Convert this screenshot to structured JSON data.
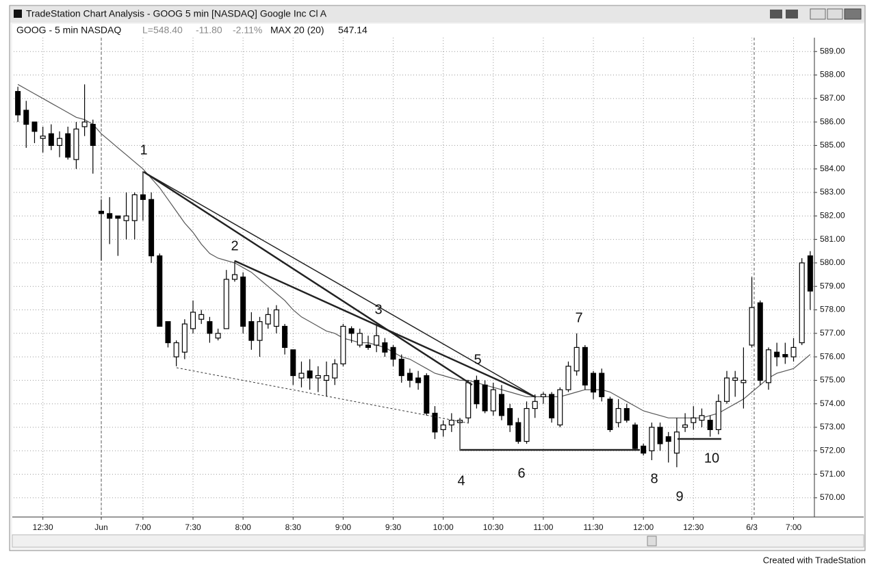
{
  "window_title": "TradeStation Chart Analysis - GOOG 5 min [NASDAQ] Google Inc Cl A",
  "status": {
    "symbol": "GOOG - 5 min NASDAQ",
    "last": "L=548.40",
    "change": "-11.80",
    "change_pct": "-2.11%",
    "indicator_value": "547.14"
  },
  "footer": "Created with TradeStation",
  "chart_data": {
    "type": "candlestick",
    "categories": [
      null,
      null,
      null,
      "12:30",
      null,
      null,
      null,
      null,
      null,
      null,
      "Jun",
      null,
      null,
      null,
      null,
      "7:00",
      null,
      null,
      null,
      null,
      null,
      "7:30",
      null,
      null,
      null,
      null,
      null,
      "8:00",
      null,
      null,
      null,
      null,
      null,
      "8:30",
      null,
      null,
      null,
      null,
      null,
      "9:00",
      null,
      null,
      null,
      null,
      null,
      "9:30",
      null,
      null,
      null,
      null,
      null,
      "10:00",
      null,
      null,
      null,
      null,
      null,
      "10:30",
      null,
      null,
      null,
      null,
      null,
      "11:00",
      null,
      null,
      null,
      null,
      null,
      "11:30",
      null,
      null,
      null,
      null,
      null,
      "12:00",
      null,
      null,
      null,
      null,
      null,
      "12:30",
      null,
      null,
      null,
      null,
      null,
      null,
      "6/3",
      null,
      null,
      null,
      null,
      "7:00",
      null,
      null
    ],
    "open": [
      587.3,
      586.5,
      586.0,
      585.3,
      585.5,
      585.0,
      585.5,
      584.4,
      585.8,
      585.9,
      582.2,
      582.1,
      582.0,
      581.8,
      581.8,
      582.9,
      582.7,
      580.3,
      577.5,
      576.0,
      576.2,
      577.2,
      577.6,
      577.5,
      576.8,
      577.2,
      579.3,
      579.4,
      577.5,
      576.7,
      577.4,
      577.3,
      577.3,
      576.3,
      575.1,
      575.4,
      575.1,
      575.0,
      575.1,
      575.7,
      577.2,
      576.5,
      576.5,
      576.5,
      576.6,
      576.4,
      575.9,
      575.3,
      575.1,
      575.2,
      573.6,
      572.9,
      573.1,
      573.2,
      573.4,
      575.0,
      574.8,
      573.7,
      574.4,
      573.8,
      573.2,
      572.4,
      573.8,
      574.3,
      574.4,
      573.1,
      574.6,
      575.4,
      576.4,
      575.3,
      575.3,
      574.2,
      573.2,
      573.8,
      573.1,
      572.2,
      572.0,
      573.0,
      572.6,
      571.9,
      573.0,
      573.2,
      573.3,
      573.3,
      572.9,
      574.1,
      575.0,
      574.9,
      576.5,
      578.3,
      574.9,
      576.2,
      576.1,
      576.0,
      576.6,
      580.3
    ],
    "high": [
      587.5,
      586.9,
      586.0,
      585.8,
      585.9,
      585.6,
      585.8,
      586.0,
      587.6,
      586.1,
      582.7,
      582.8,
      582.0,
      583.0,
      583.0,
      583.9,
      583.0,
      580.4,
      577.5,
      576.7,
      577.6,
      578.4,
      578.0,
      577.7,
      577.2,
      579.7,
      580.1,
      579.6,
      577.9,
      577.7,
      578.1,
      578.2,
      577.4,
      576.3,
      575.8,
      575.9,
      575.6,
      575.8,
      575.9,
      577.4,
      577.3,
      577.2,
      576.9,
      577.4,
      576.8,
      576.5,
      576.1,
      575.5,
      575.4,
      575.3,
      573.9,
      573.3,
      573.6,
      573.4,
      575.0,
      575.2,
      575.0,
      574.9,
      574.8,
      574.0,
      573.4,
      574.1,
      574.4,
      574.5,
      574.5,
      574.7,
      575.8,
      577.0,
      576.5,
      575.4,
      575.5,
      574.3,
      574.2,
      574.0,
      573.2,
      572.3,
      573.2,
      573.2,
      572.8,
      573.4,
      573.6,
      573.9,
      573.8,
      573.5,
      574.4,
      575.4,
      575.4,
      576.4,
      579.4,
      578.4,
      576.4,
      576.6,
      576.6,
      576.8,
      580.2,
      580.5
    ],
    "low": [
      586.0,
      584.9,
      585.1,
      584.7,
      584.8,
      584.5,
      584.4,
      584.0,
      585.4,
      583.8,
      580.1,
      580.8,
      580.3,
      581.0,
      581.0,
      581.8,
      580.0,
      577.3,
      576.4,
      575.6,
      575.9,
      577.0,
      577.4,
      576.6,
      576.7,
      577.2,
      579.2,
      577.0,
      576.3,
      576.0,
      577.2,
      577.0,
      576.1,
      574.8,
      574.7,
      574.6,
      574.5,
      574.3,
      574.8,
      575.6,
      576.6,
      576.4,
      576.3,
      576.2,
      576.0,
      575.6,
      574.9,
      574.7,
      574.6,
      573.5,
      572.5,
      572.6,
      572.8,
      572.0,
      573.2,
      573.8,
      573.6,
      573.5,
      573.3,
      572.8,
      572.3,
      572.3,
      573.4,
      574.0,
      573.2,
      573.0,
      574.5,
      575.2,
      574.6,
      574.2,
      574.1,
      572.8,
      573.0,
      573.2,
      572.0,
      571.8,
      571.6,
      572.0,
      571.5,
      571.3,
      572.8,
      572.9,
      573.0,
      572.6,
      572.7,
      574.0,
      574.3,
      573.8,
      576.4,
      574.8,
      574.6,
      575.6,
      575.7,
      575.8,
      576.5,
      578.0
    ],
    "close": [
      586.3,
      585.9,
      585.6,
      585.4,
      585.0,
      585.3,
      584.5,
      585.7,
      586.0,
      585.0,
      582.1,
      581.9,
      581.9,
      582.0,
      582.9,
      582.7,
      580.3,
      577.3,
      576.6,
      576.6,
      577.4,
      577.9,
      577.8,
      577.0,
      577.0,
      579.3,
      579.5,
      577.3,
      576.7,
      577.5,
      577.8,
      578.0,
      576.4,
      575.2,
      575.3,
      575.1,
      575.2,
      575.2,
      575.7,
      577.3,
      577.0,
      577.0,
      576.4,
      576.9,
      576.2,
      575.9,
      575.2,
      575.0,
      574.9,
      573.6,
      572.8,
      573.1,
      573.3,
      573.3,
      574.9,
      574.0,
      573.7,
      574.6,
      573.5,
      573.1,
      572.4,
      573.8,
      574.1,
      574.4,
      573.4,
      574.6,
      575.6,
      576.4,
      574.8,
      574.5,
      574.3,
      572.9,
      573.8,
      573.3,
      572.1,
      571.9,
      573.0,
      572.3,
      572.4,
      572.8,
      573.1,
      573.4,
      573.5,
      572.9,
      574.1,
      575.1,
      575.1,
      575.0,
      578.1,
      575.0,
      576.3,
      576.0,
      576.0,
      576.4,
      580.0,
      578.8
    ],
    "ma": {
      "name": "MAX 20 (20)",
      "color": "#555555",
      "values": [
        587.6,
        587.4,
        587.2,
        587.0,
        586.8,
        586.6,
        586.4,
        586.2,
        586.1,
        585.9,
        585.5,
        585.2,
        584.9,
        584.6,
        584.3,
        584.0,
        583.6,
        583.2,
        582.7,
        582.2,
        581.7,
        581.3,
        580.8,
        580.4,
        580.2,
        580.1,
        580.0,
        579.8,
        579.6,
        579.3,
        579.0,
        578.7,
        578.4,
        578.0,
        577.7,
        577.5,
        577.3,
        577.1,
        577.0,
        576.8,
        576.7,
        576.6,
        576.6,
        576.5,
        576.4,
        576.2,
        576.0,
        575.9,
        575.7,
        575.5,
        575.3,
        575.2,
        575.1,
        575.0,
        575.0,
        574.9,
        574.8,
        574.7,
        574.6,
        574.5,
        574.4,
        574.3,
        574.3,
        574.3,
        574.3,
        574.3,
        574.4,
        574.5,
        574.6,
        574.6,
        574.6,
        574.5,
        574.3,
        574.1,
        573.9,
        573.7,
        573.6,
        573.5,
        573.4,
        573.4,
        573.4,
        573.4,
        573.4,
        573.5,
        573.6,
        573.8,
        574.0,
        574.2,
        574.5,
        574.8,
        575.1,
        575.3,
        575.4,
        575.5,
        575.8,
        576.1
      ]
    },
    "up_color": "#ffffff",
    "down_color": "#000000",
    "ylim": [
      569.18,
      589.59
    ],
    "yticks": [
      {
        "value": 570,
        "label": "570.00"
      },
      {
        "value": 571,
        "label": "571.00"
      },
      {
        "value": 572,
        "label": "572.00"
      },
      {
        "value": 573,
        "label": "573.00"
      },
      {
        "value": 574,
        "label": "574.00"
      },
      {
        "value": 575,
        "label": "575.00"
      },
      {
        "value": 576,
        "label": "576.00"
      },
      {
        "value": 577,
        "label": "577.00"
      },
      {
        "value": 578,
        "label": "578.00"
      },
      {
        "value": 579,
        "label": "579.00"
      },
      {
        "value": 580,
        "label": "580.00"
      },
      {
        "value": 581,
        "label": "581.00"
      },
      {
        "value": 582,
        "label": "582.00"
      },
      {
        "value": 583,
        "label": "583.00"
      },
      {
        "value": 584,
        "label": "584.00"
      },
      {
        "value": 585,
        "label": "585.00"
      },
      {
        "value": 586,
        "label": "586.00"
      },
      {
        "value": 587,
        "label": "587.00"
      },
      {
        "value": 588,
        "label": "588.00"
      },
      {
        "value": 589,
        "label": "589.00"
      }
    ],
    "grid": true,
    "annotations": [
      "1",
      "2",
      "3",
      "4",
      "5",
      "6",
      "7",
      "8",
      "9",
      "10"
    ]
  }
}
